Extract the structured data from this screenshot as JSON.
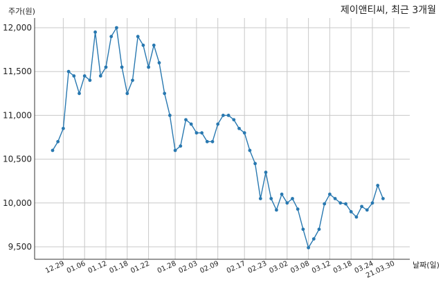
{
  "chart_data": {
    "type": "line",
    "title": "제이앤티씨, 최근 3개월",
    "ylabel": "주가(원)",
    "xlabel": "날짜(일)",
    "ylim": [
      9350,
      12050
    ],
    "yticks": [
      9500,
      10000,
      10500,
      11000,
      11500,
      12000
    ],
    "ytick_labels": [
      "9,500",
      "10,000",
      "10,500",
      "11,000",
      "11,500",
      "12,000"
    ],
    "xtick_labels": [
      "12.29",
      "01.06",
      "01.12",
      "01.18",
      "01.22",
      "01.28",
      "02.03",
      "02.09",
      "02.17",
      "02.23",
      "03.02",
      "03.08",
      "03.12",
      "03.18",
      "03.24",
      "21.03.30"
    ],
    "xtick_index": [
      2,
      6,
      10,
      14,
      18,
      23,
      27,
      31,
      36,
      40,
      44,
      48,
      52,
      56,
      60,
      64
    ],
    "grid": true,
    "color": "#2878b0",
    "series": [
      {
        "name": "",
        "values": [
          10600,
          10700,
          10850,
          11500,
          11450,
          11250,
          11450,
          11400,
          11950,
          11450,
          11550,
          11900,
          12000,
          11550,
          11250,
          11400,
          11900,
          11800,
          11550,
          11800,
          11600,
          11250,
          11000,
          10600,
          10650,
          10950,
          10900,
          10800,
          10800,
          10700,
          10700,
          10900,
          11000,
          11000,
          10950,
          10850,
          10800,
          10600,
          10450,
          10050,
          10350,
          10050,
          9920,
          10100,
          10000,
          10050,
          9930,
          9700,
          9490,
          9590,
          9700,
          9990,
          10100,
          10050,
          10000,
          9990,
          9900,
          9840,
          9960,
          9920,
          10000,
          10200,
          10050
        ]
      }
    ]
  }
}
